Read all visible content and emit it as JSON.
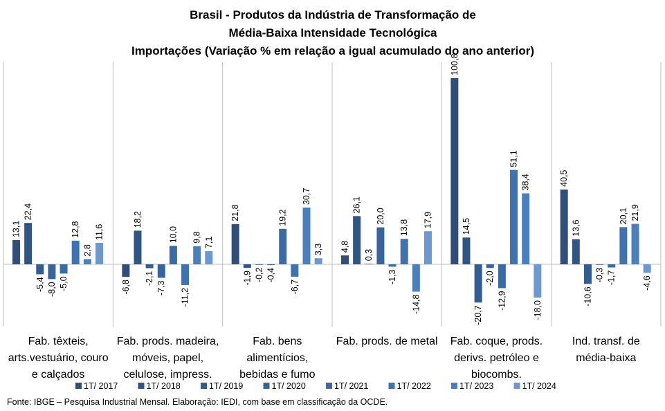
{
  "chart_data": {
    "type": "bar",
    "title": [
      "Brasil - Produtos da Indústria de Transformação de",
      "Média-Baixa Intensidade Tecnológica",
      "Importações (Variação % em relação a igual acumulado do ano anterior)"
    ],
    "categories": [
      [
        "Fab. têxteis,",
        "arts.vestuário, couro",
        "e calçados"
      ],
      [
        "Fab. prods. madeira,",
        "móveis, papel,",
        "celulose, impress."
      ],
      [
        "Fab. bens",
        "alimentícios,",
        "bebidas e fumo"
      ],
      [
        "Fab. prods. de metal"
      ],
      [
        "Fab. coque, prods.",
        "derivs. petróleo e",
        "biocombs."
      ],
      [
        "Ind. transf. de",
        "média-baixa"
      ]
    ],
    "series": [
      {
        "name": "1T/ 2017",
        "color": "#2f4e7a",
        "values": [
          13.1,
          -6.8,
          21.8,
          4.8,
          100.8,
          40.5
        ]
      },
      {
        "name": "1T/ 2018",
        "color": "#2f5585",
        "values": [
          22.4,
          18.2,
          -1.9,
          26.1,
          14.5,
          13.6
        ]
      },
      {
        "name": "1T/ 2019",
        "color": "#335c91",
        "values": [
          -5.4,
          -2.1,
          -0.2,
          0.3,
          -20.7,
          -10.6
        ]
      },
      {
        "name": "1T/ 2020",
        "color": "#37649c",
        "values": [
          -8.0,
          -7.3,
          -0.4,
          20.0,
          -2.0,
          -0.3
        ]
      },
      {
        "name": "1T/ 2021",
        "color": "#3a6ba6",
        "values": [
          -5.0,
          10.0,
          19.2,
          -1.3,
          -12.9,
          -1.7
        ]
      },
      {
        "name": "1T/ 2022",
        "color": "#3e72b0",
        "values": [
          12.8,
          -11.2,
          -6.7,
          13.8,
          51.1,
          20.1
        ]
      },
      {
        "name": "1T/ 2023",
        "color": "#4a7fbe",
        "values": [
          2.8,
          9.8,
          30.7,
          -14.8,
          38.4,
          21.9
        ]
      },
      {
        "name": "1T/ 2024",
        "color": "#6c98d2",
        "values": [
          11.6,
          7.1,
          3.3,
          17.9,
          -18.0,
          -4.6
        ]
      }
    ],
    "data_labels": [
      [
        "13,1",
        "-6,8",
        "21,8",
        "4,8",
        "100,8",
        "40,5"
      ],
      [
        "22,4",
        "18,2",
        "-1,9",
        "26,1",
        "14,5",
        "13,6"
      ],
      [
        "-5,4",
        "-2,1",
        "-0,2",
        "0,3",
        "-20,7",
        "-10,6"
      ],
      [
        "-8,0",
        "-7,3",
        "-0,4",
        "20,0",
        "-2,0",
        "-0,3"
      ],
      [
        "-5,0",
        "10,0",
        "19,2",
        "-1,3",
        "-12,9",
        "-1,7"
      ],
      [
        "12,8",
        "-11,2",
        "-6,7",
        "13,8",
        "51,1",
        "20,1"
      ],
      [
        "2,8",
        "9,8",
        "30,7",
        "-14,8",
        "38,4",
        "21,9"
      ],
      [
        "11,6",
        "7,1",
        "3,3",
        "17,9",
        "-18,0",
        "-4,6"
      ]
    ],
    "grid": false,
    "legend_position": "bottom",
    "axis_line_color": "#bfbfbf"
  },
  "source": "Fonte: IBGE – Pesquisa Industrial Mensal. Elaboração: IEDI, com base em classificação da OCDE."
}
